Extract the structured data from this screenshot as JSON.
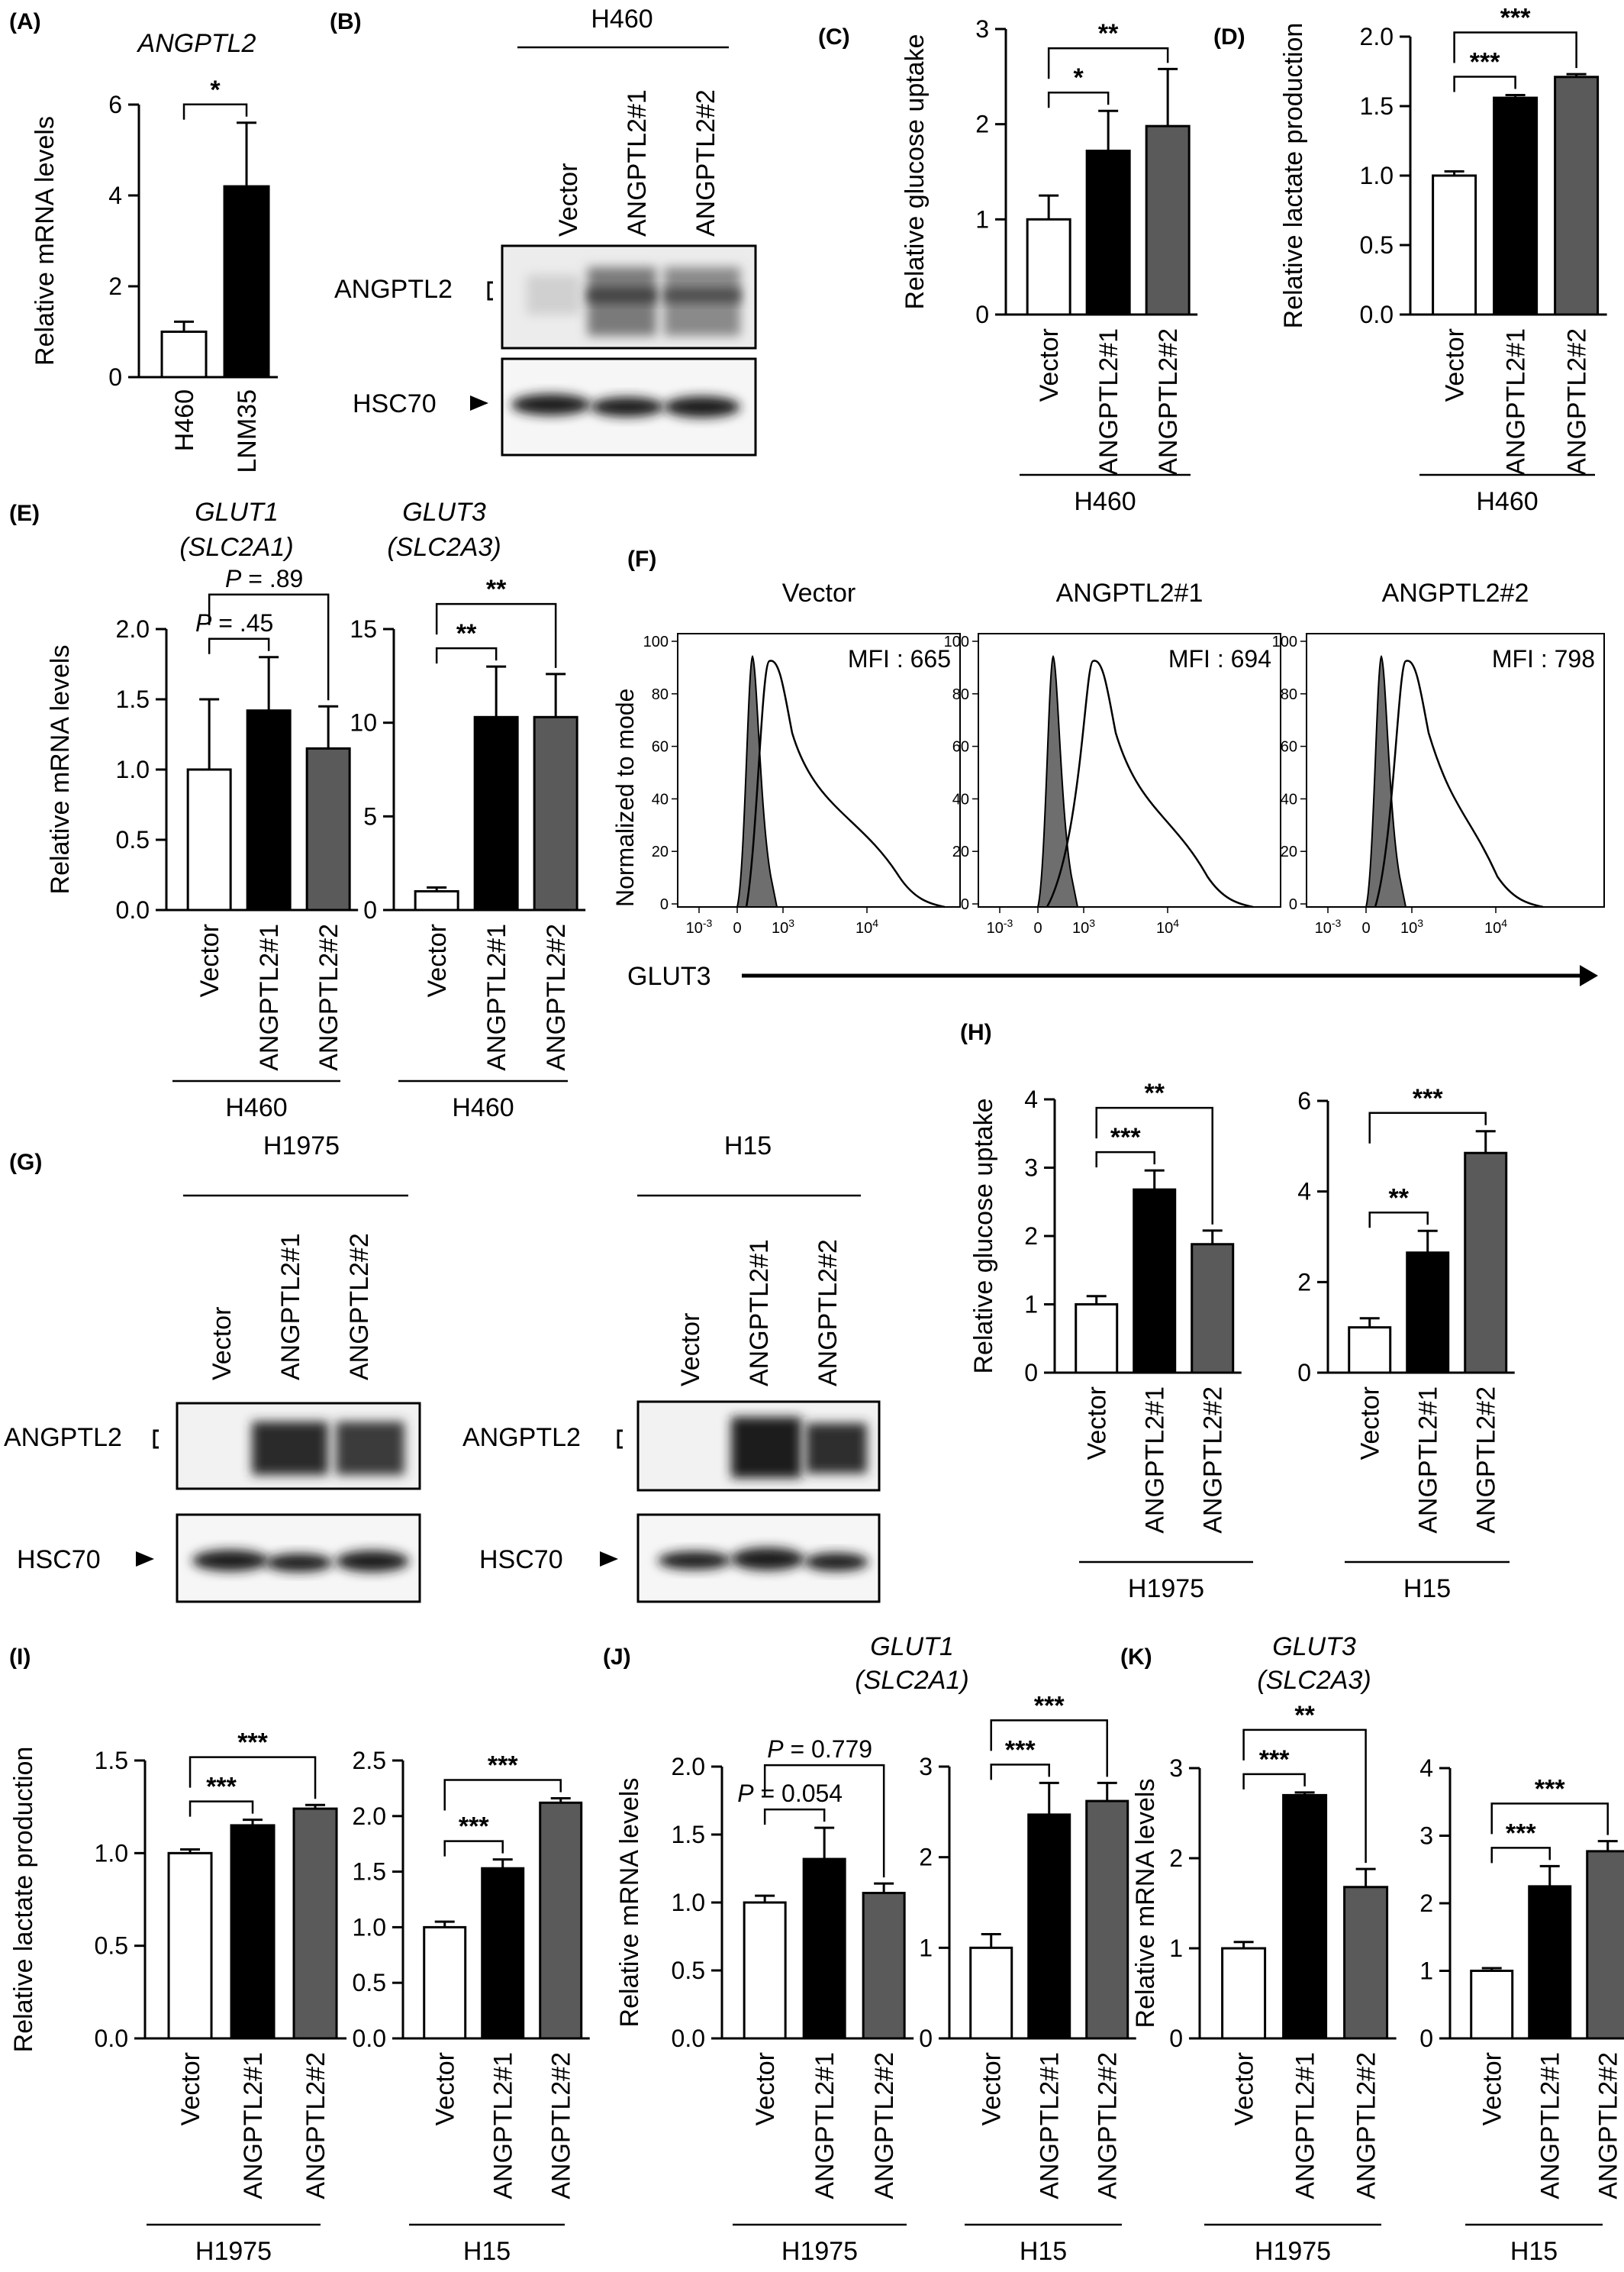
{
  "colors": {
    "vector": "#ffffff",
    "angptl2_1": "#000000",
    "angptl2_2": "#5a5a5a",
    "fill_gray": "#6e6e6e",
    "stroke": "#000000"
  },
  "shared": {
    "vector": "Vector",
    "g1": "ANGPTL2#1",
    "g2": "ANGPTL2#2",
    "angptl2": "ANGPTL2",
    "hsc70": "HSC70",
    "H460": "H460",
    "H1975": "H1975",
    "H15": "H15"
  },
  "panelA": {
    "label": "(A)",
    "gene": "ANGPTL2"
  },
  "panelB": {
    "label": "(B)"
  },
  "panelC": {
    "label": "(C)"
  },
  "panelD": {
    "label": "(D)"
  },
  "panelE": {
    "label": "(E)",
    "gene1": "GLUT1",
    "gene1b": "(SLC2A1)",
    "gene2": "GLUT3",
    "gene2b": "(SLC2A3)"
  },
  "panelF": {
    "label": "(F)",
    "ylabel": "Normalized to mode",
    "xlabel": "GLUT3",
    "titles": [
      "Vector",
      "ANGPTL2#1",
      "ANGPTL2#2"
    ],
    "mfi": [
      "MFI : 665",
      "MFI : 694",
      "MFI : 798"
    ],
    "yticks": [
      "0",
      "20",
      "40",
      "60",
      "80",
      "100"
    ],
    "xticks": [
      "10-3",
      "0",
      "103",
      "104"
    ]
  },
  "panelG": {
    "label": "(G)"
  },
  "panelH": {
    "label": "(H)"
  },
  "panelI": {
    "label": "(I)"
  },
  "panelJ": {
    "label": "(J)",
    "gene": "GLUT1",
    "geneb": "(SLC2A1)"
  },
  "panelK": {
    "label": "(K)",
    "gene": "GLUT3",
    "geneb": "(SLC2A3)"
  },
  "chart_data": [
    {
      "id": "A",
      "type": "bar",
      "ylabel": "Relative mRNA levels",
      "ylim": [
        0,
        6
      ],
      "yticks": [
        0,
        2,
        4,
        6
      ],
      "categories": [
        "H460",
        "LNM35"
      ],
      "values": [
        1.0,
        4.2
      ],
      "errors": [
        0.22,
        1.4
      ],
      "sig": [
        {
          "a": 0,
          "b": 1,
          "text": "*"
        }
      ]
    },
    {
      "id": "C",
      "type": "bar",
      "ylabel": "Relative glucose uptake",
      "ylim": [
        0,
        3
      ],
      "yticks": [
        0,
        1,
        2,
        3
      ],
      "categories": [
        "Vector",
        "ANGPTL2#1",
        "ANGPTL2#2"
      ],
      "values": [
        1.0,
        1.72,
        1.98
      ],
      "errors": [
        0.25,
        0.42,
        0.6
      ],
      "group": "H460",
      "sig": [
        {
          "a": 0,
          "b": 1,
          "text": "*"
        },
        {
          "a": 0,
          "b": 2,
          "text": "**"
        }
      ]
    },
    {
      "id": "D",
      "type": "bar",
      "ylabel": "Relative lactate production",
      "ylim": [
        0,
        2.0
      ],
      "yticks": [
        "0.0",
        "0.5",
        "1.0",
        "1.5",
        "2.0"
      ],
      "categories": [
        "Vector",
        "ANGPTL2#1",
        "ANGPTL2#2"
      ],
      "values": [
        1.0,
        1.56,
        1.71
      ],
      "errors": [
        0.03,
        0.02,
        0.02
      ],
      "group": "H460",
      "sig": [
        {
          "a": 0,
          "b": 1,
          "text": "***"
        },
        {
          "a": 0,
          "b": 2,
          "text": "***"
        }
      ]
    },
    {
      "id": "E1",
      "type": "bar",
      "ylabel": "Relative mRNA levels",
      "ylim": [
        0,
        2.0
      ],
      "yticks": [
        "0.0",
        "0.5",
        "1.0",
        "1.5",
        "2.0"
      ],
      "categories": [
        "Vector",
        "ANGPTL2#1",
        "ANGPTL2#2"
      ],
      "values": [
        1.0,
        1.42,
        1.15
      ],
      "errors": [
        0.5,
        0.38,
        0.3
      ],
      "group": "H460",
      "sig": [
        {
          "a": 0,
          "b": 1,
          "p": "P",
          "text": " = .45"
        },
        {
          "a": 0,
          "b": 2,
          "p": "P",
          "text": " = .89"
        }
      ]
    },
    {
      "id": "E2",
      "type": "bar",
      "ylabel": "",
      "ylim": [
        0,
        15
      ],
      "yticks": [
        0,
        5,
        10,
        15
      ],
      "categories": [
        "Vector",
        "ANGPTL2#1",
        "ANGPTL2#2"
      ],
      "values": [
        1.0,
        10.3,
        10.3
      ],
      "errors": [
        0.2,
        2.7,
        2.3
      ],
      "group": "H460",
      "sig": [
        {
          "a": 0,
          "b": 1,
          "text": "**"
        },
        {
          "a": 0,
          "b": 2,
          "text": "**"
        }
      ]
    },
    {
      "id": "H1",
      "type": "bar",
      "ylabel": "Relative glucose uptake",
      "ylim": [
        0,
        4
      ],
      "yticks": [
        0,
        1,
        2,
        3,
        4
      ],
      "categories": [
        "Vector",
        "ANGPTL2#1",
        "ANGPTL2#2"
      ],
      "values": [
        1.0,
        2.68,
        1.88
      ],
      "errors": [
        0.12,
        0.28,
        0.2
      ],
      "group": "H1975",
      "sig": [
        {
          "a": 0,
          "b": 1,
          "text": "***"
        },
        {
          "a": 0,
          "b": 2,
          "text": "**"
        }
      ]
    },
    {
      "id": "H2",
      "type": "bar",
      "ylabel": "",
      "ylim": [
        0,
        6
      ],
      "yticks": [
        0,
        2,
        4,
        6
      ],
      "categories": [
        "Vector",
        "ANGPTL2#1",
        "ANGPTL2#2"
      ],
      "values": [
        1.0,
        2.65,
        4.85
      ],
      "errors": [
        0.2,
        0.48,
        0.48
      ],
      "group": "H15",
      "sig": [
        {
          "a": 0,
          "b": 1,
          "text": "**"
        },
        {
          "a": 0,
          "b": 2,
          "text": "***"
        }
      ]
    },
    {
      "id": "I1",
      "type": "bar",
      "ylabel": "Relative lactate production",
      "ylim": [
        0,
        1.5
      ],
      "yticks": [
        "0.0",
        "0.5",
        "1.0",
        "1.5"
      ],
      "categories": [
        "Vector",
        "ANGPTL2#1",
        "ANGPTL2#2"
      ],
      "values": [
        1.0,
        1.15,
        1.24
      ],
      "errors": [
        0.02,
        0.03,
        0.02
      ],
      "group": "H1975",
      "sig": [
        {
          "a": 0,
          "b": 1,
          "text": "***"
        },
        {
          "a": 0,
          "b": 2,
          "text": "***"
        }
      ]
    },
    {
      "id": "I2",
      "type": "bar",
      "ylabel": "",
      "ylim": [
        0,
        2.5
      ],
      "yticks": [
        "0.0",
        "0.5",
        "1.0",
        "1.5",
        "2.0",
        "2.5"
      ],
      "categories": [
        "Vector",
        "ANGPTL2#1",
        "ANGPTL2#2"
      ],
      "values": [
        1.0,
        1.53,
        2.12
      ],
      "errors": [
        0.05,
        0.08,
        0.04
      ],
      "group": "H15",
      "sig": [
        {
          "a": 0,
          "b": 1,
          "text": "***"
        },
        {
          "a": 0,
          "b": 2,
          "text": "***"
        }
      ]
    },
    {
      "id": "J1",
      "type": "bar",
      "ylabel": "Relative mRNA levels",
      "ylim": [
        0,
        2.0
      ],
      "yticks": [
        "0.0",
        "0.5",
        "1.0",
        "1.5",
        "2.0"
      ],
      "categories": [
        "Vector",
        "ANGPTL2#1",
        "ANGPTL2#2"
      ],
      "values": [
        1.0,
        1.32,
        1.07
      ],
      "errors": [
        0.05,
        0.23,
        0.07
      ],
      "group": "H1975",
      "sig": [
        {
          "a": 0,
          "b": 1,
          "p": "P",
          "text": " = 0.054"
        },
        {
          "a": 0,
          "b": 2,
          "p": "P",
          "text": " = 0.779"
        }
      ]
    },
    {
      "id": "J2",
      "type": "bar",
      "ylabel": "",
      "ylim": [
        0,
        3
      ],
      "yticks": [
        0,
        1,
        2,
        3
      ],
      "categories": [
        "Vector",
        "ANGPTL2#1",
        "ANGPTL2#2"
      ],
      "values": [
        1.0,
        2.47,
        2.62
      ],
      "errors": [
        0.15,
        0.35,
        0.2
      ],
      "group": "H15",
      "sig": [
        {
          "a": 0,
          "b": 1,
          "text": "***"
        },
        {
          "a": 0,
          "b": 2,
          "text": "***"
        }
      ]
    },
    {
      "id": "K1",
      "type": "bar",
      "ylabel": "Relative mRNA levels",
      "ylim": [
        0,
        3
      ],
      "yticks": [
        0,
        1,
        2,
        3
      ],
      "categories": [
        "Vector",
        "ANGPTL2#1",
        "ANGPTL2#2"
      ],
      "values": [
        1.0,
        2.7,
        1.68
      ],
      "errors": [
        0.07,
        0.03,
        0.2
      ],
      "group": "H1975",
      "sig": [
        {
          "a": 0,
          "b": 1,
          "text": "***"
        },
        {
          "a": 0,
          "b": 2,
          "text": "**"
        }
      ]
    },
    {
      "id": "K2",
      "type": "bar",
      "ylabel": "",
      "ylim": [
        0,
        4
      ],
      "yticks": [
        0,
        1,
        2,
        3,
        4
      ],
      "categories": [
        "Vector",
        "ANGPTL2#1",
        "ANGPTL2#2"
      ],
      "values": [
        1.0,
        2.25,
        2.77
      ],
      "errors": [
        0.04,
        0.3,
        0.15
      ],
      "group": "H15",
      "sig": [
        {
          "a": 0,
          "b": 1,
          "text": "***"
        },
        {
          "a": 0,
          "b": 2,
          "text": "***"
        }
      ]
    }
  ]
}
